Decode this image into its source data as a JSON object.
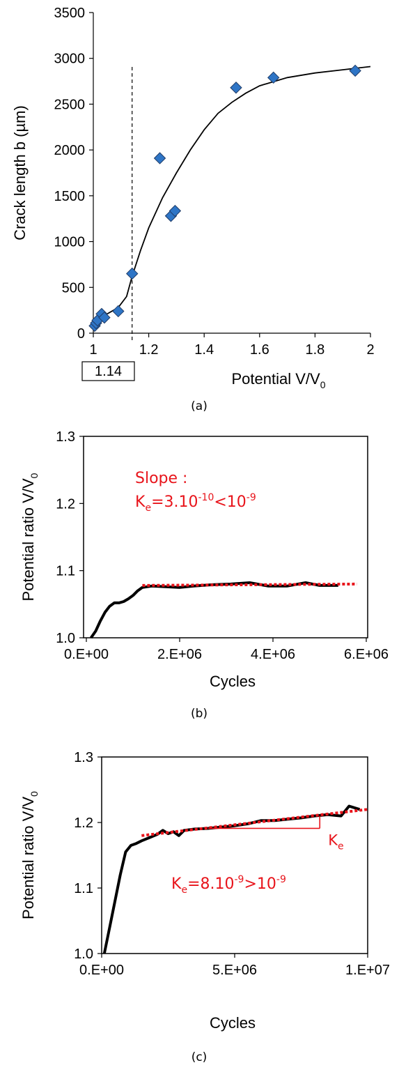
{
  "chart_data": [
    {
      "panel": "(a)",
      "type": "scatter",
      "xlabel": "Potential V/V",
      "xlabel_sub": "0",
      "ylabel": "Crack length b (µm)",
      "xlim": [
        1,
        2
      ],
      "ylim": [
        0,
        3500
      ],
      "xticks": [
        "1",
        "1.2",
        "1.4",
        "1.6",
        "1.8",
        "2"
      ],
      "yticks": [
        "0",
        "500",
        "1000",
        "1500",
        "2000",
        "2500",
        "3000",
        "3500"
      ],
      "marker_color": "#2e75c6",
      "points": [
        {
          "x": 1.005,
          "y": 80
        },
        {
          "x": 1.01,
          "y": 110
        },
        {
          "x": 1.015,
          "y": 140
        },
        {
          "x": 1.03,
          "y": 210
        },
        {
          "x": 1.04,
          "y": 170
        },
        {
          "x": 1.09,
          "y": 240
        },
        {
          "x": 1.14,
          "y": 650
        },
        {
          "x": 1.24,
          "y": 1910
        },
        {
          "x": 1.28,
          "y": 1280
        },
        {
          "x": 1.295,
          "y": 1335
        },
        {
          "x": 1.515,
          "y": 2680
        },
        {
          "x": 1.65,
          "y": 2790
        },
        {
          "x": 1.945,
          "y": 2865
        }
      ],
      "fit_curve": [
        {
          "x": 1.0,
          "y": 80
        },
        {
          "x": 1.02,
          "y": 150
        },
        {
          "x": 1.05,
          "y": 210
        },
        {
          "x": 1.09,
          "y": 280
        },
        {
          "x": 1.12,
          "y": 400
        },
        {
          "x": 1.14,
          "y": 620
        },
        {
          "x": 1.17,
          "y": 900
        },
        {
          "x": 1.2,
          "y": 1150
        },
        {
          "x": 1.25,
          "y": 1480
        },
        {
          "x": 1.3,
          "y": 1750
        },
        {
          "x": 1.35,
          "y": 2000
        },
        {
          "x": 1.4,
          "y": 2220
        },
        {
          "x": 1.45,
          "y": 2400
        },
        {
          "x": 1.5,
          "y": 2520
        },
        {
          "x": 1.55,
          "y": 2620
        },
        {
          "x": 1.6,
          "y": 2700
        },
        {
          "x": 1.7,
          "y": 2790
        },
        {
          "x": 1.8,
          "y": 2840
        },
        {
          "x": 1.9,
          "y": 2875
        },
        {
          "x": 2.0,
          "y": 2910
        }
      ],
      "threshold_x": 1.14,
      "threshold_label": "1.14"
    },
    {
      "panel": "(b)",
      "type": "line",
      "xlabel": "Cycles",
      "ylabel": "Potential ratio V/V",
      "ylabel_sub": "0",
      "xlim": [
        0,
        6000000
      ],
      "ylim": [
        1.0,
        1.3
      ],
      "xticks": [
        "0.E+00",
        "2.E+06",
        "4.E+06",
        "6.E+06"
      ],
      "yticks": [
        "1.0",
        "1.1",
        "1.2",
        "1.3"
      ],
      "series": [
        {
          "color": "#000000",
          "points": [
            {
              "x": 100000,
              "y": 1.0
            },
            {
              "x": 200000,
              "y": 1.01
            },
            {
              "x": 300000,
              "y": 1.025
            },
            {
              "x": 400000,
              "y": 1.038
            },
            {
              "x": 500000,
              "y": 1.047
            },
            {
              "x": 600000,
              "y": 1.052
            },
            {
              "x": 700000,
              "y": 1.052
            },
            {
              "x": 800000,
              "y": 1.054
            },
            {
              "x": 900000,
              "y": 1.058
            },
            {
              "x": 1000000,
              "y": 1.063
            },
            {
              "x": 1100000,
              "y": 1.07
            },
            {
              "x": 1200000,
              "y": 1.075
            },
            {
              "x": 1400000,
              "y": 1.077
            },
            {
              "x": 1700000,
              "y": 1.076
            },
            {
              "x": 2000000,
              "y": 1.075
            },
            {
              "x": 2300000,
              "y": 1.077
            },
            {
              "x": 2700000,
              "y": 1.079
            },
            {
              "x": 3100000,
              "y": 1.08
            },
            {
              "x": 3500000,
              "y": 1.082
            },
            {
              "x": 3900000,
              "y": 1.077
            },
            {
              "x": 4300000,
              "y": 1.077
            },
            {
              "x": 4700000,
              "y": 1.082
            },
            {
              "x": 5000000,
              "y": 1.078
            },
            {
              "x": 5400000,
              "y": 1.078
            }
          ]
        },
        {
          "color": "#e8141b",
          "dashed": true,
          "points": [
            {
              "x": 1200000,
              "y": 1.078
            },
            {
              "x": 5800000,
              "y": 1.08
            }
          ]
        }
      ],
      "annotation_line1": "Slope :",
      "annotation_line2_a": "K",
      "annotation_line2_sub": "e",
      "annotation_line2_b": "=3.10",
      "annotation_line2_sup1": "-10",
      "annotation_line2_c": "<10",
      "annotation_line2_sup2": "-9"
    },
    {
      "panel": "(c)",
      "type": "line",
      "xlabel": "Cycles",
      "ylabel": "Potential ratio V/V",
      "ylabel_sub": "0",
      "xlim": [
        0,
        10000000
      ],
      "ylim": [
        1.0,
        1.3
      ],
      "xticks": [
        "0.E+00",
        "5.E+06",
        "1.E+07"
      ],
      "yticks": [
        "1.0",
        "1.1",
        "1.2",
        "1.3"
      ],
      "series": [
        {
          "color": "#000000",
          "points": [
            {
              "x": 100000,
              "y": 1.0
            },
            {
              "x": 300000,
              "y": 1.04
            },
            {
              "x": 500000,
              "y": 1.08
            },
            {
              "x": 700000,
              "y": 1.12
            },
            {
              "x": 900000,
              "y": 1.155
            },
            {
              "x": 1100000,
              "y": 1.165
            },
            {
              "x": 1300000,
              "y": 1.168
            },
            {
              "x": 1500000,
              "y": 1.172
            },
            {
              "x": 1800000,
              "y": 1.177
            },
            {
              "x": 2100000,
              "y": 1.182
            },
            {
              "x": 2300000,
              "y": 1.188
            },
            {
              "x": 2500000,
              "y": 1.183
            },
            {
              "x": 2700000,
              "y": 1.186
            },
            {
              "x": 2900000,
              "y": 1.18
            },
            {
              "x": 3100000,
              "y": 1.188
            },
            {
              "x": 3500000,
              "y": 1.19
            },
            {
              "x": 4000000,
              "y": 1.191
            },
            {
              "x": 4500000,
              "y": 1.193
            },
            {
              "x": 5000000,
              "y": 1.195
            },
            {
              "x": 5500000,
              "y": 1.198
            },
            {
              "x": 6000000,
              "y": 1.203
            },
            {
              "x": 6500000,
              "y": 1.203
            },
            {
              "x": 7000000,
              "y": 1.205
            },
            {
              "x": 7500000,
              "y": 1.207
            },
            {
              "x": 8000000,
              "y": 1.21
            },
            {
              "x": 8500000,
              "y": 1.212
            },
            {
              "x": 9000000,
              "y": 1.21
            },
            {
              "x": 9300000,
              "y": 1.225
            },
            {
              "x": 9700000,
              "y": 1.22
            }
          ]
        },
        {
          "color": "#e8141b",
          "dashed": true,
          "points": [
            {
              "x": 1500000,
              "y": 1.18
            },
            {
              "x": 10000000,
              "y": 1.22
            }
          ]
        }
      ],
      "slope_triangle": {
        "x_start": 4000000,
        "x_end": 8200000,
        "y_low": 1.191,
        "y_high": 1.21
      },
      "triangle_label": "K",
      "triangle_label_sub": "e",
      "annotation_a": "K",
      "annotation_sub": "e",
      "annotation_b": "=8.10",
      "annotation_sup1": "-9",
      "annotation_c": ">10",
      "annotation_sup2": "-9"
    }
  ]
}
